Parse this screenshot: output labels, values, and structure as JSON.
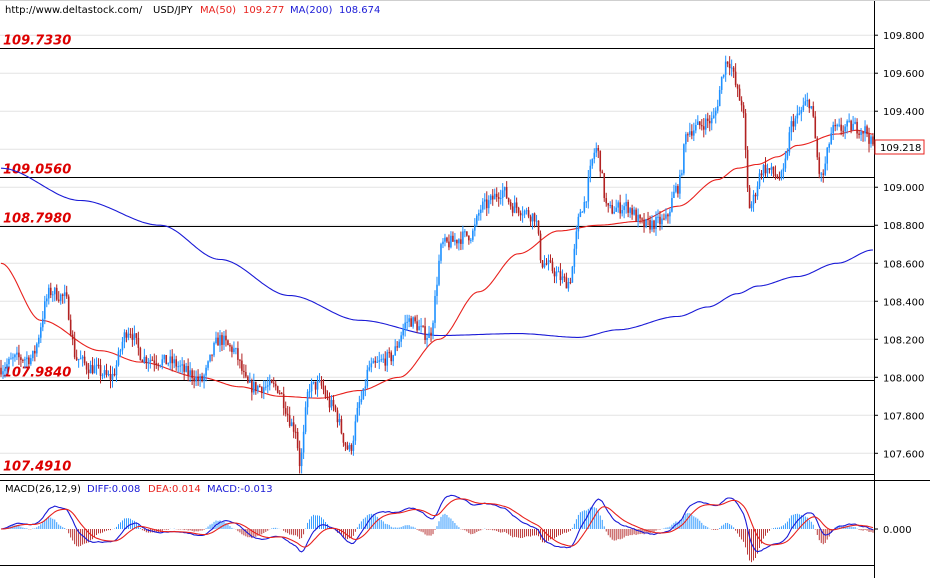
{
  "header": {
    "url": "http://www.deltastock.com/",
    "symbol": "USD/JPY",
    "ma50_label": "MA(50)",
    "ma50_value": "109.277",
    "ma200_label": "MA(200)",
    "ma200_value": "108.674"
  },
  "macd_header": {
    "title": "MACD(26,12,9)",
    "diff_label": "DIFF:0.008",
    "dea_label": "DEA:0.014",
    "macd_label": "MACD:-0.013"
  },
  "price_tag": "109.218",
  "colors": {
    "up": "#1e90ff",
    "down": "#b22222",
    "ma50": "#e8211d",
    "ma200": "#1a1ad6",
    "hline": "#000000",
    "hline_label": "#dd0000",
    "grid": "#e4e4e4"
  },
  "chart_data": {
    "type": "candlestick",
    "y_ticks": [
      "109.800",
      "109.600",
      "109.400",
      "109.200",
      "109.000",
      "108.800",
      "108.600",
      "108.400",
      "108.200",
      "108.000",
      "107.800",
      "107.600"
    ],
    "ylim": [
      107.47,
      109.88
    ],
    "horizontal_lines": [
      109.733,
      109.056,
      108.798,
      107.984,
      107.491
    ],
    "horizontal_line_labels": [
      "109.7330",
      "109.0560",
      "108.7980",
      "107.9840",
      "107.4910"
    ],
    "series": [
      {
        "name": "MA(50)",
        "anchors": [
          [
            0,
            108.6
          ],
          [
            20,
            108.3
          ],
          [
            50,
            108.14
          ],
          [
            70,
            108.08
          ],
          [
            100,
            108.0
          ],
          [
            120,
            107.95
          ],
          [
            140,
            107.9
          ],
          [
            160,
            107.89
          ],
          [
            180,
            107.93
          ],
          [
            200,
            108.0
          ],
          [
            220,
            108.2
          ],
          [
            240,
            108.45
          ],
          [
            260,
            108.65
          ],
          [
            280,
            108.77
          ],
          [
            300,
            108.8
          ],
          [
            320,
            108.82
          ],
          [
            340,
            108.9
          ],
          [
            360,
            109.04
          ],
          [
            370,
            109.1
          ],
          [
            380,
            109.12
          ],
          [
            390,
            109.16
          ],
          [
            400,
            109.22
          ],
          [
            420,
            109.28
          ],
          [
            430,
            109.3
          ],
          [
            438,
            109.28
          ]
        ]
      },
      {
        "name": "MA(200)",
        "anchors": [
          [
            0,
            109.1
          ],
          [
            40,
            108.93
          ],
          [
            80,
            108.8
          ],
          [
            110,
            108.62
          ],
          [
            145,
            108.43
          ],
          [
            180,
            108.3
          ],
          [
            220,
            108.22
          ],
          [
            260,
            108.23
          ],
          [
            290,
            108.21
          ],
          [
            310,
            108.25
          ],
          [
            340,
            108.32
          ],
          [
            355,
            108.37
          ],
          [
            370,
            108.44
          ],
          [
            380,
            108.48
          ],
          [
            400,
            108.53
          ],
          [
            420,
            108.6
          ],
          [
            438,
            108.67
          ]
        ]
      }
    ],
    "price_anchors": [
      [
        0,
        108.05
      ],
      [
        8,
        108.1
      ],
      [
        15,
        108.1
      ],
      [
        25,
        108.45
      ],
      [
        32,
        108.42
      ],
      [
        38,
        108.1
      ],
      [
        45,
        108.05
      ],
      [
        55,
        108.0
      ],
      [
        64,
        108.25
      ],
      [
        72,
        108.1
      ],
      [
        85,
        108.08
      ],
      [
        95,
        108.02
      ],
      [
        100,
        107.98
      ],
      [
        110,
        108.2
      ],
      [
        116,
        108.15
      ],
      [
        125,
        107.95
      ],
      [
        138,
        107.95
      ],
      [
        148,
        107.73
      ],
      [
        150,
        107.55
      ],
      [
        155,
        107.95
      ],
      [
        160,
        107.96
      ],
      [
        166,
        107.85
      ],
      [
        175,
        107.62
      ],
      [
        181,
        107.88
      ],
      [
        185,
        108.05
      ],
      [
        195,
        108.1
      ],
      [
        205,
        108.3
      ],
      [
        215,
        108.22
      ],
      [
        222,
        108.7
      ],
      [
        236,
        108.75
      ],
      [
        242,
        108.9
      ],
      [
        252,
        108.98
      ],
      [
        257,
        108.9
      ],
      [
        268,
        108.85
      ],
      [
        272,
        108.6
      ],
      [
        285,
        108.5
      ],
      [
        292,
        108.9
      ],
      [
        299,
        109.2
      ],
      [
        305,
        108.88
      ],
      [
        314,
        108.9
      ],
      [
        323,
        108.8
      ],
      [
        333,
        108.82
      ],
      [
        340,
        109.0
      ],
      [
        345,
        109.3
      ],
      [
        357,
        109.35
      ],
      [
        365,
        109.67
      ],
      [
        372,
        109.45
      ],
      [
        376,
        108.9
      ],
      [
        383,
        109.1
      ],
      [
        392,
        109.05
      ],
      [
        398,
        109.35
      ],
      [
        406,
        109.45
      ],
      [
        412,
        109.05
      ],
      [
        418,
        109.3
      ],
      [
        428,
        109.32
      ],
      [
        434,
        109.3
      ],
      [
        438,
        109.22
      ]
    ],
    "macd": {
      "y_tick": "0.000",
      "components": [
        "DIFF",
        "DEA",
        "MACD histogram"
      ]
    }
  }
}
